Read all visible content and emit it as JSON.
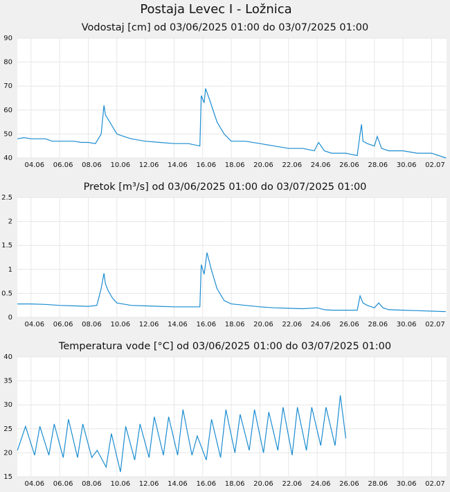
{
  "title": "Postaja Levec I - Ložnica",
  "chart_data": [
    {
      "type": "line",
      "title": "Vodostaj [cm] od 03/06/2025 01:00 do 03/07/2025 01:00",
      "color": "#1a8cd0",
      "grid": true,
      "xlim": [
        3.042,
        33.042
      ],
      "ylim": [
        40,
        90
      ],
      "yticks": [
        40,
        50,
        60,
        70,
        80,
        90
      ],
      "xticks": [
        {
          "value": 4,
          "label": "04.06"
        },
        {
          "value": 6,
          "label": "06.06"
        },
        {
          "value": 8,
          "label": "08.06"
        },
        {
          "value": 10,
          "label": "10.06"
        },
        {
          "value": 12,
          "label": "12.06"
        },
        {
          "value": 14,
          "label": "14.06"
        },
        {
          "value": 16,
          "label": "16.06"
        },
        {
          "value": 18,
          "label": "18.06"
        },
        {
          "value": 20,
          "label": "20.06"
        },
        {
          "value": 22,
          "label": "22.06"
        },
        {
          "value": 24,
          "label": "24.06"
        },
        {
          "value": 26,
          "label": "26.06"
        },
        {
          "value": 28,
          "label": "28.06"
        },
        {
          "value": 30,
          "label": "30.06"
        },
        {
          "value": 32,
          "label": "02.07"
        }
      ],
      "x": [
        3.05,
        3.5,
        4,
        5,
        5.5,
        6,
        7,
        7.5,
        8,
        8.5,
        8.9,
        9.1,
        9.2,
        9.5,
        10,
        10.5,
        11,
        12,
        13,
        14,
        15,
        15.8,
        15.9,
        16.1,
        16.2,
        16.5,
        17,
        17.5,
        18,
        19,
        20,
        21,
        22,
        23,
        23.8,
        24.1,
        24.5,
        25,
        26,
        26.8,
        27,
        27.1,
        27.2,
        27.5,
        28,
        28.2,
        28.5,
        29,
        30,
        31,
        32,
        32.5,
        33
      ],
      "values": [
        48,
        48.5,
        48,
        48,
        47,
        47,
        47,
        46.5,
        46.5,
        46,
        50,
        62,
        58,
        55,
        50,
        49,
        48,
        47,
        46.5,
        46,
        46,
        45,
        66,
        63,
        69,
        64,
        55,
        50,
        47,
        47,
        46,
        45,
        44,
        44,
        43,
        46.5,
        43,
        42,
        42,
        41,
        50,
        54,
        47,
        46,
        45,
        49,
        44,
        43,
        43,
        42,
        42,
        41,
        40
      ]
    },
    {
      "type": "line",
      "title": "Pretok [m³/s] od 03/06/2025 01:00 do 03/07/2025 01:00",
      "color": "#1a8cd0",
      "grid": true,
      "xlim": [
        3.042,
        33.042
      ],
      "ylim": [
        0,
        2.5
      ],
      "yticks": [
        0,
        0.5,
        1,
        1.5,
        2,
        2.5
      ],
      "xticks": [
        {
          "value": 4,
          "label": "04.06"
        },
        {
          "value": 6,
          "label": "06.06"
        },
        {
          "value": 8,
          "label": "08.06"
        },
        {
          "value": 10,
          "label": "10.06"
        },
        {
          "value": 12,
          "label": "12.06"
        },
        {
          "value": 14,
          "label": "14.06"
        },
        {
          "value": 16,
          "label": "16.06"
        },
        {
          "value": 18,
          "label": "18.06"
        },
        {
          "value": 20,
          "label": "20.06"
        },
        {
          "value": 22,
          "label": "22.06"
        },
        {
          "value": 24,
          "label": "24.06"
        },
        {
          "value": 26,
          "label": "26.06"
        },
        {
          "value": 28,
          "label": "28.06"
        },
        {
          "value": 30,
          "label": "30.06"
        },
        {
          "value": 32,
          "label": "02.07"
        }
      ],
      "x": [
        3.05,
        4,
        5,
        6,
        7,
        8,
        8.6,
        8.9,
        9.1,
        9.2,
        9.4,
        9.7,
        10,
        11,
        12,
        13,
        14,
        15,
        15.8,
        15.9,
        16.1,
        16.3,
        16.6,
        17,
        17.5,
        18,
        19,
        20,
        21,
        22,
        23,
        24,
        24.5,
        25,
        26,
        26.8,
        27,
        27.2,
        27.5,
        28,
        28.3,
        28.6,
        29,
        30,
        31,
        32,
        33
      ],
      "values": [
        0.28,
        0.28,
        0.27,
        0.25,
        0.24,
        0.23,
        0.25,
        0.6,
        0.92,
        0.7,
        0.55,
        0.4,
        0.3,
        0.25,
        0.24,
        0.23,
        0.22,
        0.22,
        0.22,
        1.1,
        0.9,
        1.35,
        1.0,
        0.6,
        0.35,
        0.28,
        0.25,
        0.22,
        0.2,
        0.19,
        0.18,
        0.2,
        0.16,
        0.15,
        0.15,
        0.15,
        0.45,
        0.3,
        0.25,
        0.2,
        0.3,
        0.2,
        0.16,
        0.15,
        0.14,
        0.13,
        0.12
      ]
    },
    {
      "type": "line",
      "title": "Temperatura vode [°C] od 03/06/2025 01:00 do 03/07/2025 01:00",
      "color": "#1a8cd0",
      "grid": true,
      "xlim": [
        3.042,
        33.042
      ],
      "ylim": [
        15,
        40
      ],
      "yticks": [
        15,
        20,
        25,
        30,
        35,
        40
      ],
      "xticks": [
        {
          "value": 4,
          "label": "04.06"
        },
        {
          "value": 6,
          "label": "06.06"
        },
        {
          "value": 8,
          "label": "08.06"
        },
        {
          "value": 10,
          "label": "10.06"
        },
        {
          "value": 12,
          "label": "12.06"
        },
        {
          "value": 14,
          "label": "14.06"
        },
        {
          "value": 16,
          "label": "16.06"
        },
        {
          "value": 18,
          "label": "18.06"
        },
        {
          "value": 20,
          "label": "20.06"
        },
        {
          "value": 22,
          "label": "22.06"
        },
        {
          "value": 24,
          "label": "24.06"
        },
        {
          "value": 26,
          "label": "26.06"
        },
        {
          "value": 28,
          "label": "28.06"
        },
        {
          "value": 30,
          "label": "30.06"
        },
        {
          "value": 32,
          "label": "02.07"
        }
      ],
      "x": [
        3.05,
        3.62,
        4.25,
        4.62,
        5.25,
        5.62,
        6.25,
        6.62,
        7.25,
        7.62,
        8.25,
        8.62,
        9.25,
        9.62,
        10.25,
        10.62,
        11.25,
        11.62,
        12.25,
        12.62,
        13.25,
        13.62,
        14.25,
        14.62,
        15.25,
        15.62,
        16.25,
        16.62,
        17.25,
        17.62,
        18.25,
        18.62,
        19.25,
        19.62,
        20.25,
        20.62,
        21.25,
        21.62,
        22.25,
        22.62,
        23.25,
        23.62,
        24.25,
        24.62,
        25.25,
        25.62,
        26.0
      ],
      "values": [
        20.5,
        25.5,
        19.5,
        25.5,
        19.5,
        26,
        19,
        27,
        19,
        26,
        19,
        20.5,
        17,
        24,
        16,
        25.5,
        18.5,
        26,
        19,
        27.5,
        19.5,
        27.5,
        19.5,
        29,
        19.5,
        23.5,
        18.5,
        27,
        19,
        29,
        20,
        28,
        20.5,
        29,
        20,
        28.5,
        20.5,
        29.5,
        19.5,
        29.5,
        20.5,
        29.5,
        21.5,
        29.5,
        21.5,
        32,
        23
      ]
    }
  ]
}
